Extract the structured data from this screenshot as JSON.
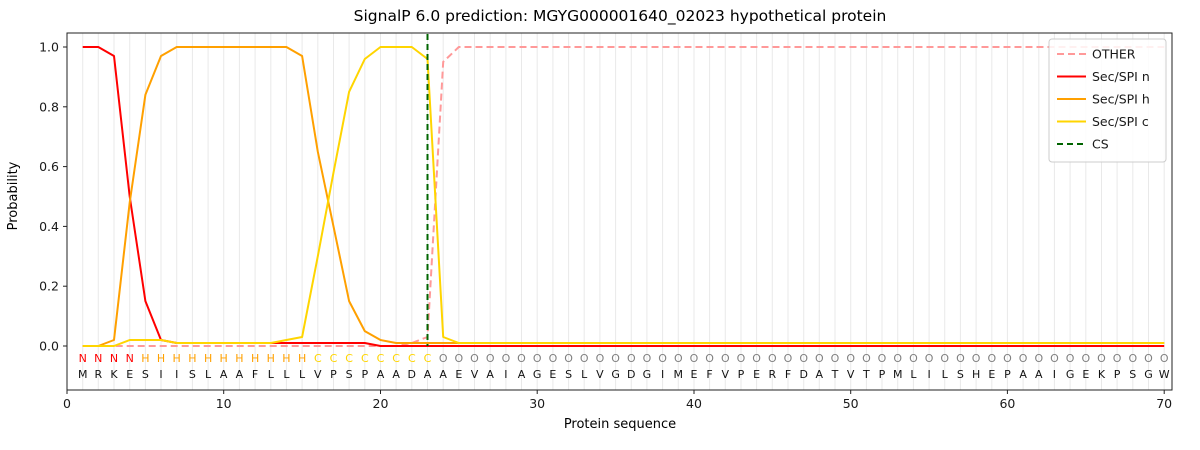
{
  "figure": {
    "title": "SignalP 6.0 prediction: MGYG000001640_02023 hypothetical protein",
    "xlabel": "Protein sequence",
    "ylabel": "Probability"
  },
  "chart_data": {
    "type": "line",
    "title": "SignalP 6.0 prediction: MGYG000001640_02023 hypothetical protein",
    "xlabel": "Protein sequence",
    "ylabel": "Probability",
    "xlim": [
      0,
      70.5
    ],
    "ylim": [
      -0.15,
      1.05
    ],
    "xticks": [
      0,
      10,
      20,
      30,
      40,
      50,
      60,
      70
    ],
    "yticks": [
      0.0,
      0.2,
      0.4,
      0.6,
      0.8,
      1.0
    ],
    "grid": "vertical line per residue",
    "grid_color": "#e9e9e9",
    "legend_position": "upper right",
    "sequence": "MRKESIISLAAFLLLVPSPAADAAEVAIAGESLVGDGIMEFVPERFDATVTPMLILSHEPAAIGEKPSGW",
    "region_labels": "NNNNHHHHHHHHHHHCCCCCCCCOOOOOOOOOOOOOOOOOOOOOOOOOOOOOOOOOOOOOOOOOOOOOO",
    "region_colors": {
      "N": "#ff0000",
      "H": "#ffa000",
      "C": "#ffd500",
      "O": "#808080"
    },
    "series": [
      {
        "id": "other",
        "name": "OTHER",
        "color": "#ff9999",
        "dash": "7 4",
        "values": [
          0,
          0,
          0,
          0,
          0,
          0,
          0,
          0,
          0,
          0,
          0,
          0,
          0,
          0,
          0,
          0,
          0,
          0,
          0,
          0,
          0,
          0.01,
          0.03,
          0.95,
          1.0,
          1.0,
          1.0,
          1.0,
          1.0,
          1.0,
          1.0,
          1.0,
          1.0,
          1.0,
          1.0,
          1.0,
          1.0,
          1.0,
          1.0,
          1.0,
          1.0,
          1.0,
          1.0,
          1.0,
          1.0,
          1.0,
          1.0,
          1.0,
          1.0,
          1.0,
          1.0,
          1.0,
          1.0,
          1.0,
          1.0,
          1.0,
          1.0,
          1.0,
          1.0,
          1.0,
          1.0,
          1.0,
          1.0,
          1.0,
          1.0,
          1.0,
          1.0,
          1.0,
          1.0,
          1.0
        ]
      },
      {
        "id": "sec-spi-n",
        "name": "Sec/SPI n",
        "color": "#ff0000",
        "dash": null,
        "values": [
          1.0,
          1.0,
          0.97,
          0.5,
          0.15,
          0.02,
          0.01,
          0.01,
          0.01,
          0.01,
          0.01,
          0.01,
          0.01,
          0.01,
          0.01,
          0.01,
          0.01,
          0.01,
          0.01,
          0,
          0,
          0,
          0,
          0,
          0,
          0,
          0,
          0,
          0,
          0,
          0,
          0,
          0,
          0,
          0,
          0,
          0,
          0,
          0,
          0,
          0,
          0,
          0,
          0,
          0,
          0,
          0,
          0,
          0,
          0,
          0,
          0,
          0,
          0,
          0,
          0,
          0,
          0,
          0,
          0,
          0,
          0,
          0,
          0,
          0,
          0,
          0,
          0,
          0,
          0
        ]
      },
      {
        "id": "sec-spi-h",
        "name": "Sec/SPI h",
        "color": "#ffa000",
        "dash": null,
        "values": [
          0,
          0,
          0.02,
          0.48,
          0.84,
          0.97,
          1.0,
          1.0,
          1.0,
          1.0,
          1.0,
          1.0,
          1.0,
          1.0,
          0.97,
          0.65,
          0.4,
          0.15,
          0.05,
          0.02,
          0.01,
          0.01,
          0.01,
          0.01,
          0.01,
          0.01,
          0.01,
          0.01,
          0.01,
          0.01,
          0.01,
          0.01,
          0.01,
          0.01,
          0.01,
          0.01,
          0.01,
          0.01,
          0.01,
          0.01,
          0.01,
          0.01,
          0.01,
          0.01,
          0.01,
          0.01,
          0.01,
          0.01,
          0.01,
          0.01,
          0.01,
          0.01,
          0.01,
          0.01,
          0.01,
          0.01,
          0.01,
          0.01,
          0.01,
          0.01,
          0.01,
          0.01,
          0.01,
          0.01,
          0.01,
          0.01,
          0.01,
          0.01,
          0.01,
          0.01
        ]
      },
      {
        "id": "sec-spi-c",
        "name": "Sec/SPI c",
        "color": "#ffd500",
        "dash": null,
        "values": [
          0,
          0,
          0,
          0.02,
          0.02,
          0.02,
          0.01,
          0.01,
          0.01,
          0.01,
          0.01,
          0.01,
          0.01,
          0.02,
          0.03,
          0.3,
          0.58,
          0.85,
          0.96,
          1.0,
          1.0,
          1.0,
          0.96,
          0.03,
          0.01,
          0.01,
          0.01,
          0.01,
          0.01,
          0.01,
          0.01,
          0.01,
          0.01,
          0.01,
          0.01,
          0.01,
          0.01,
          0.01,
          0.01,
          0.01,
          0.01,
          0.01,
          0.01,
          0.01,
          0.01,
          0.01,
          0.01,
          0.01,
          0.01,
          0.01,
          0.01,
          0.01,
          0.01,
          0.01,
          0.01,
          0.01,
          0.01,
          0.01,
          0.01,
          0.01,
          0.01,
          0.01,
          0.01,
          0.01,
          0.01,
          0.01,
          0.01,
          0.01,
          0.01,
          0.01
        ]
      }
    ],
    "cs_marker": {
      "name": "CS",
      "position": 23,
      "color": "#006400",
      "style": "dashed"
    },
    "legend_entries": [
      "OTHER",
      "Sec/SPI n",
      "Sec/SPI h",
      "Sec/SPI c",
      "CS"
    ]
  }
}
